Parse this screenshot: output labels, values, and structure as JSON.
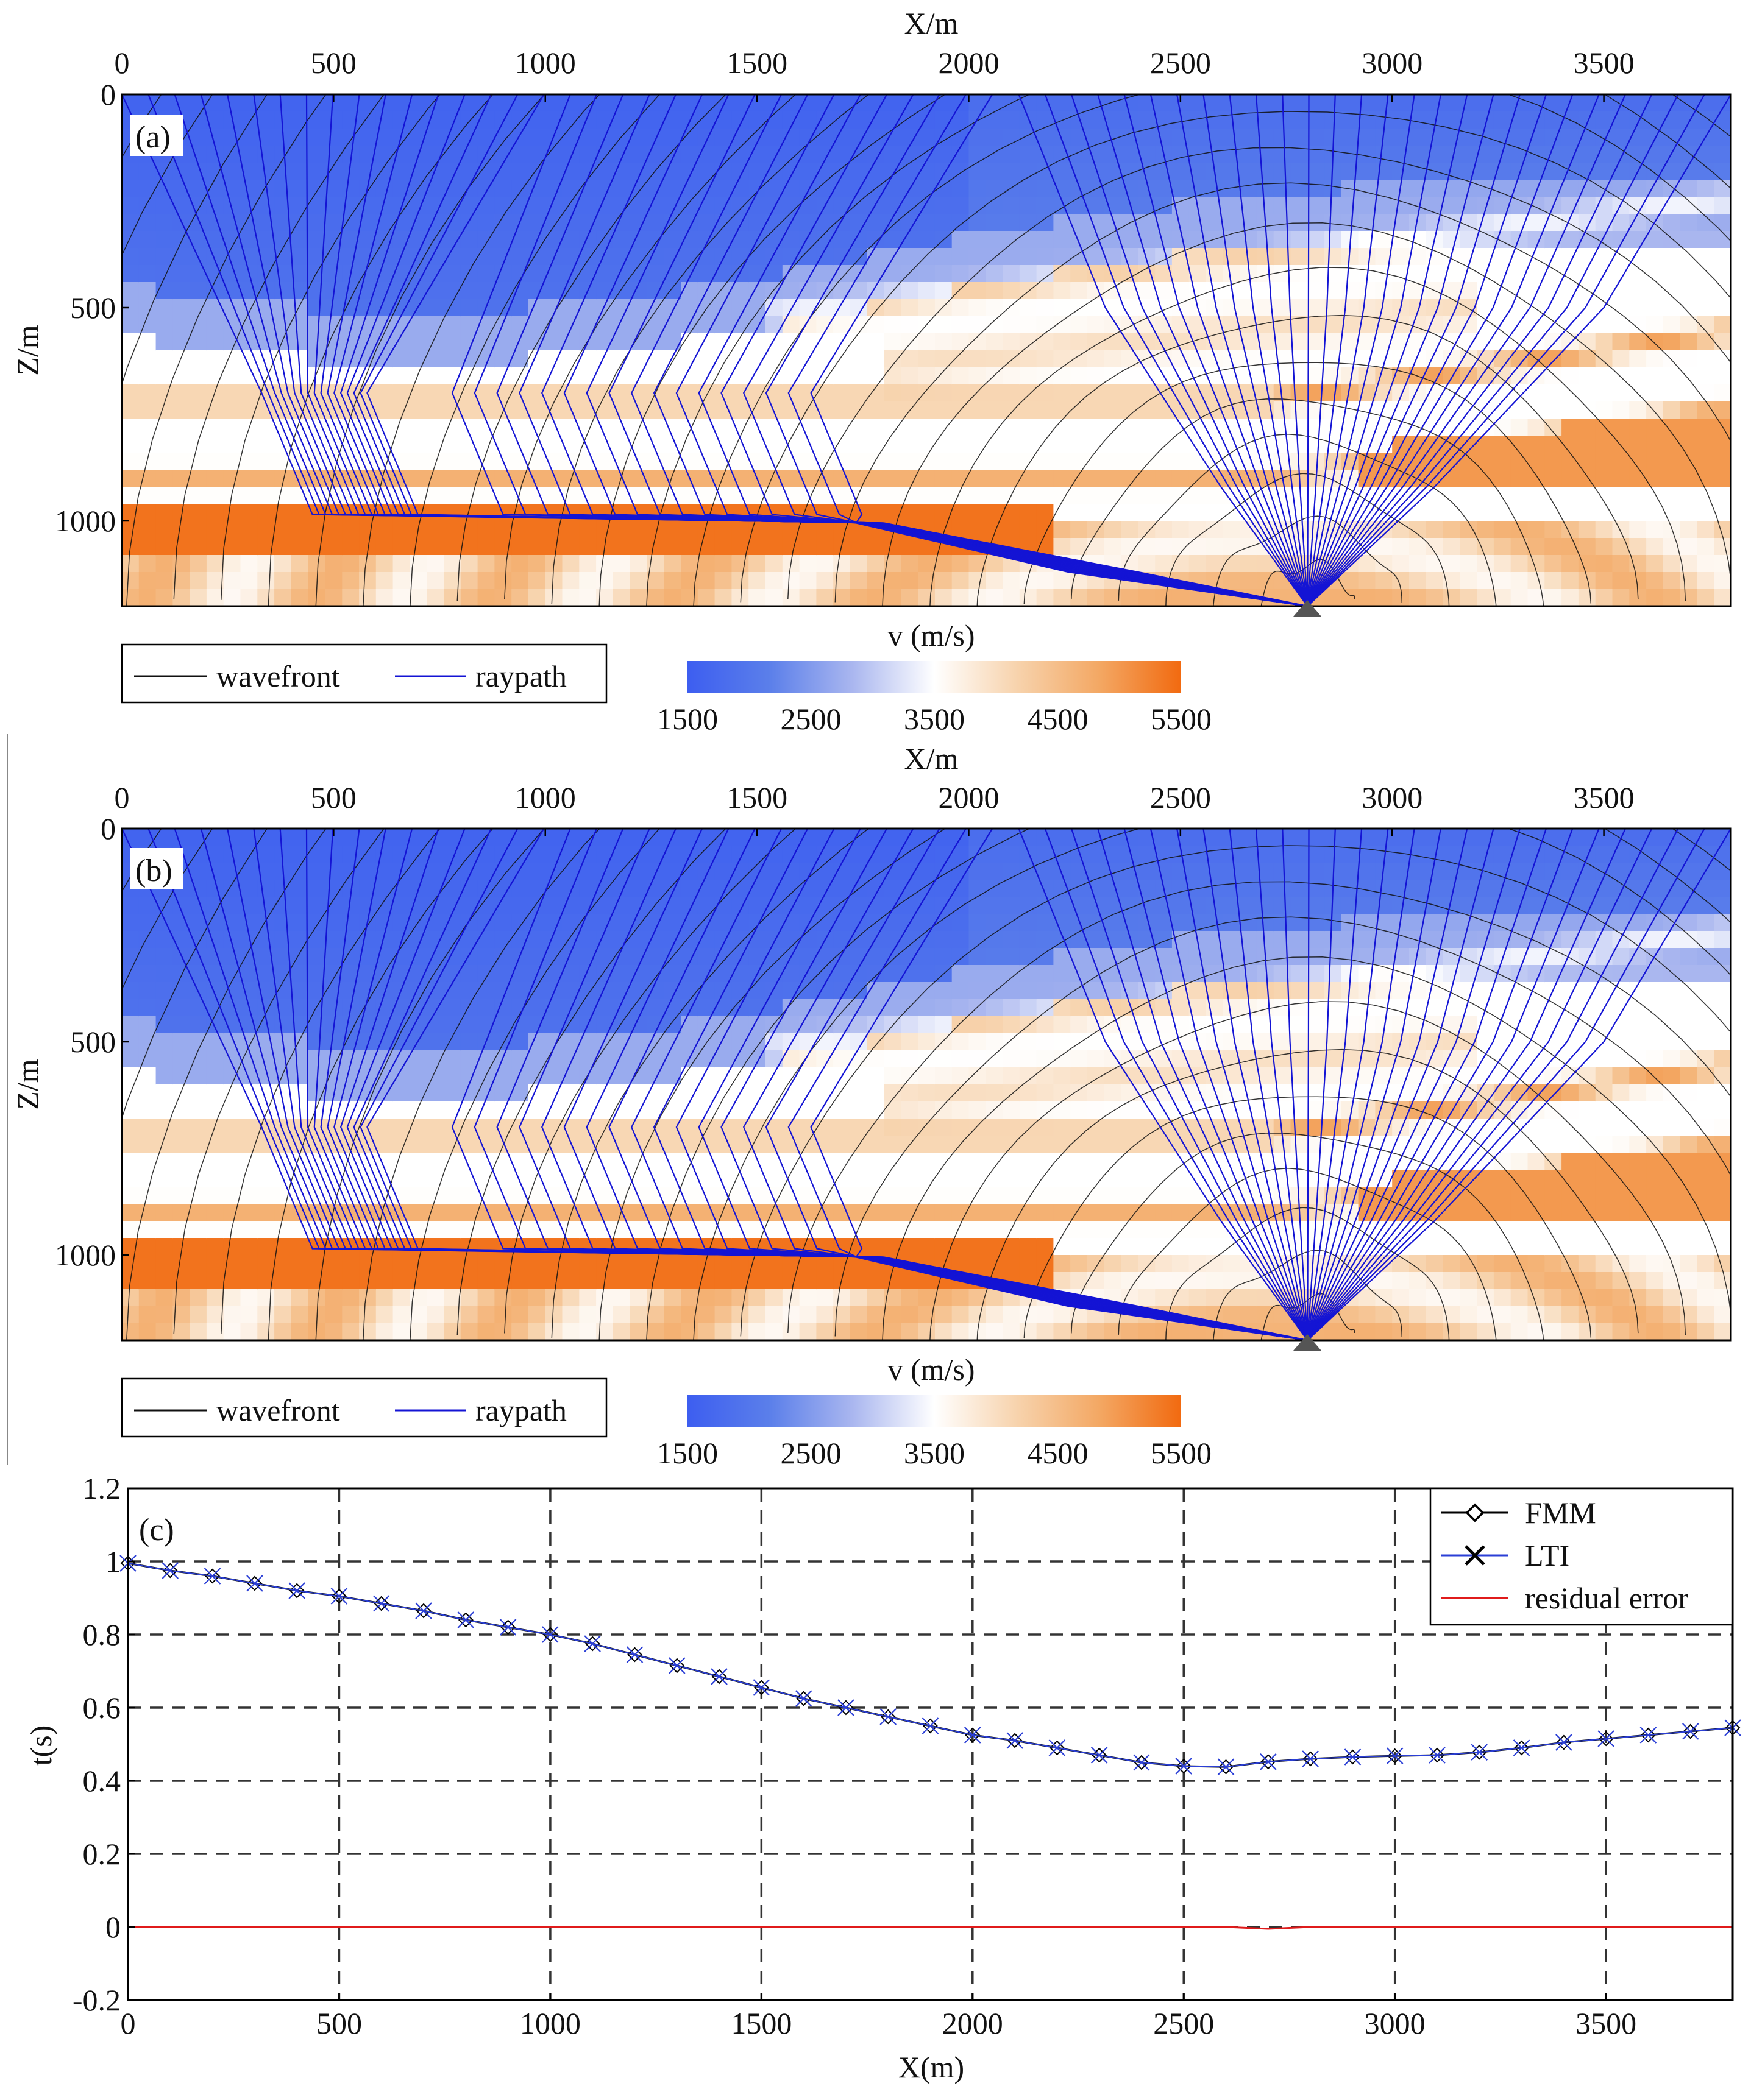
{
  "colors": {
    "velocity_scale": [
      "#3d5ef0",
      "#5b7fea",
      "#a9b6ef",
      "#ffffff",
      "#f7d3ad",
      "#f3a864",
      "#f26a10"
    ],
    "wavefront": "#111111",
    "raypath": "#1414d4",
    "fmm": "#000000",
    "lti": "#2b3fd6",
    "residual": "#e01b1b",
    "grid": "#333333",
    "source_marker": "#555555"
  },
  "panels": [
    {
      "id": "a",
      "panel_label": "(a)",
      "x_axis_label": "X/m",
      "z_axis_label": "Z/m",
      "x_ticks": [
        "0",
        "500",
        "1000",
        "1500",
        "2000",
        "2500",
        "3000",
        "3500"
      ],
      "z_ticks": [
        "0",
        "500",
        "1000"
      ],
      "legend": {
        "wavefront": "wavefront",
        "raypath": "raypath"
      },
      "colorbar": {
        "title": "v (m/s)",
        "ticks": [
          "1500",
          "2500",
          "3500",
          "4500",
          "5500"
        ]
      }
    },
    {
      "id": "b",
      "panel_label": "(b)",
      "x_axis_label": "X/m",
      "z_axis_label": "Z/m",
      "x_ticks": [
        "0",
        "500",
        "1000",
        "1500",
        "2000",
        "2500",
        "3000",
        "3500"
      ],
      "z_ticks": [
        "0",
        "500",
        "1000"
      ],
      "legend": {
        "wavefront": "wavefront",
        "raypath": "raypath"
      },
      "colorbar": {
        "title": "v (m/s)",
        "ticks": [
          "1500",
          "2500",
          "3500",
          "4500",
          "5500"
        ]
      }
    }
  ],
  "chart_data": [
    {
      "type": "heatmap",
      "panel": "(a)",
      "xlabel": "X/m",
      "ylabel": "Z/m",
      "xlim": [
        0,
        3800
      ],
      "ylim": [
        1200,
        0
      ],
      "colorbar_title": "v (m/s)",
      "colorbar_range": [
        1500,
        5500
      ],
      "source_x": 2800,
      "source_z": 1200,
      "series": [
        {
          "name": "wavefront"
        },
        {
          "name": "raypath"
        }
      ]
    },
    {
      "type": "heatmap",
      "panel": "(b)",
      "xlabel": "X/m",
      "ylabel": "Z/m",
      "xlim": [
        0,
        3800
      ],
      "ylim": [
        1200,
        0
      ],
      "colorbar_title": "v (m/s)",
      "colorbar_range": [
        1500,
        5500
      ],
      "source_x": 2800,
      "source_z": 1200,
      "series": [
        {
          "name": "wavefront"
        },
        {
          "name": "raypath"
        }
      ]
    },
    {
      "type": "line",
      "panel": "(c)",
      "xlabel": "X(m)",
      "ylabel": "t(s)",
      "xlim": [
        0,
        3800
      ],
      "ylim": [
        -0.2,
        1.2
      ],
      "x_ticks": [
        "0",
        "500",
        "1000",
        "1500",
        "2000",
        "2500",
        "3000",
        "3500"
      ],
      "y_ticks": [
        "-0.2",
        "0",
        "0.2",
        "0.4",
        "0.6",
        "0.8",
        "1",
        "1.2"
      ],
      "grid": true,
      "legend_position": "top-right",
      "x": [
        0,
        100,
        200,
        300,
        400,
        500,
        600,
        700,
        800,
        900,
        1000,
        1100,
        1200,
        1300,
        1400,
        1500,
        1600,
        1700,
        1800,
        1900,
        2000,
        2100,
        2200,
        2300,
        2400,
        2500,
        2600,
        2700,
        2800,
        2900,
        3000,
        3100,
        3200,
        3300,
        3400,
        3500,
        3600,
        3700,
        3800
      ],
      "series": [
        {
          "name": "FMM",
          "values": [
            0.995,
            0.975,
            0.96,
            0.94,
            0.92,
            0.905,
            0.885,
            0.865,
            0.84,
            0.82,
            0.8,
            0.775,
            0.745,
            0.715,
            0.685,
            0.655,
            0.625,
            0.6,
            0.575,
            0.55,
            0.525,
            0.51,
            0.49,
            0.47,
            0.45,
            0.44,
            0.438,
            0.452,
            0.46,
            0.465,
            0.468,
            0.47,
            0.478,
            0.49,
            0.505,
            0.515,
            0.525,
            0.535,
            0.545
          ]
        },
        {
          "name": "LTI",
          "values": [
            0.995,
            0.975,
            0.96,
            0.94,
            0.92,
            0.905,
            0.885,
            0.865,
            0.84,
            0.82,
            0.8,
            0.775,
            0.745,
            0.715,
            0.685,
            0.655,
            0.625,
            0.6,
            0.575,
            0.55,
            0.525,
            0.51,
            0.49,
            0.47,
            0.45,
            0.44,
            0.438,
            0.452,
            0.46,
            0.465,
            0.468,
            0.47,
            0.478,
            0.49,
            0.505,
            0.515,
            0.525,
            0.535,
            0.545
          ]
        },
        {
          "name": "residual error",
          "values": [
            0,
            0,
            0,
            0,
            0,
            0,
            0,
            0,
            0,
            0,
            0,
            0,
            0,
            0,
            0,
            0,
            0,
            0,
            0,
            0,
            0,
            0,
            0,
            0,
            0,
            0,
            0,
            -0.005,
            0,
            0,
            0,
            0,
            0,
            0,
            0,
            0,
            0,
            0,
            0
          ]
        }
      ],
      "panel_label": "(c)"
    }
  ]
}
